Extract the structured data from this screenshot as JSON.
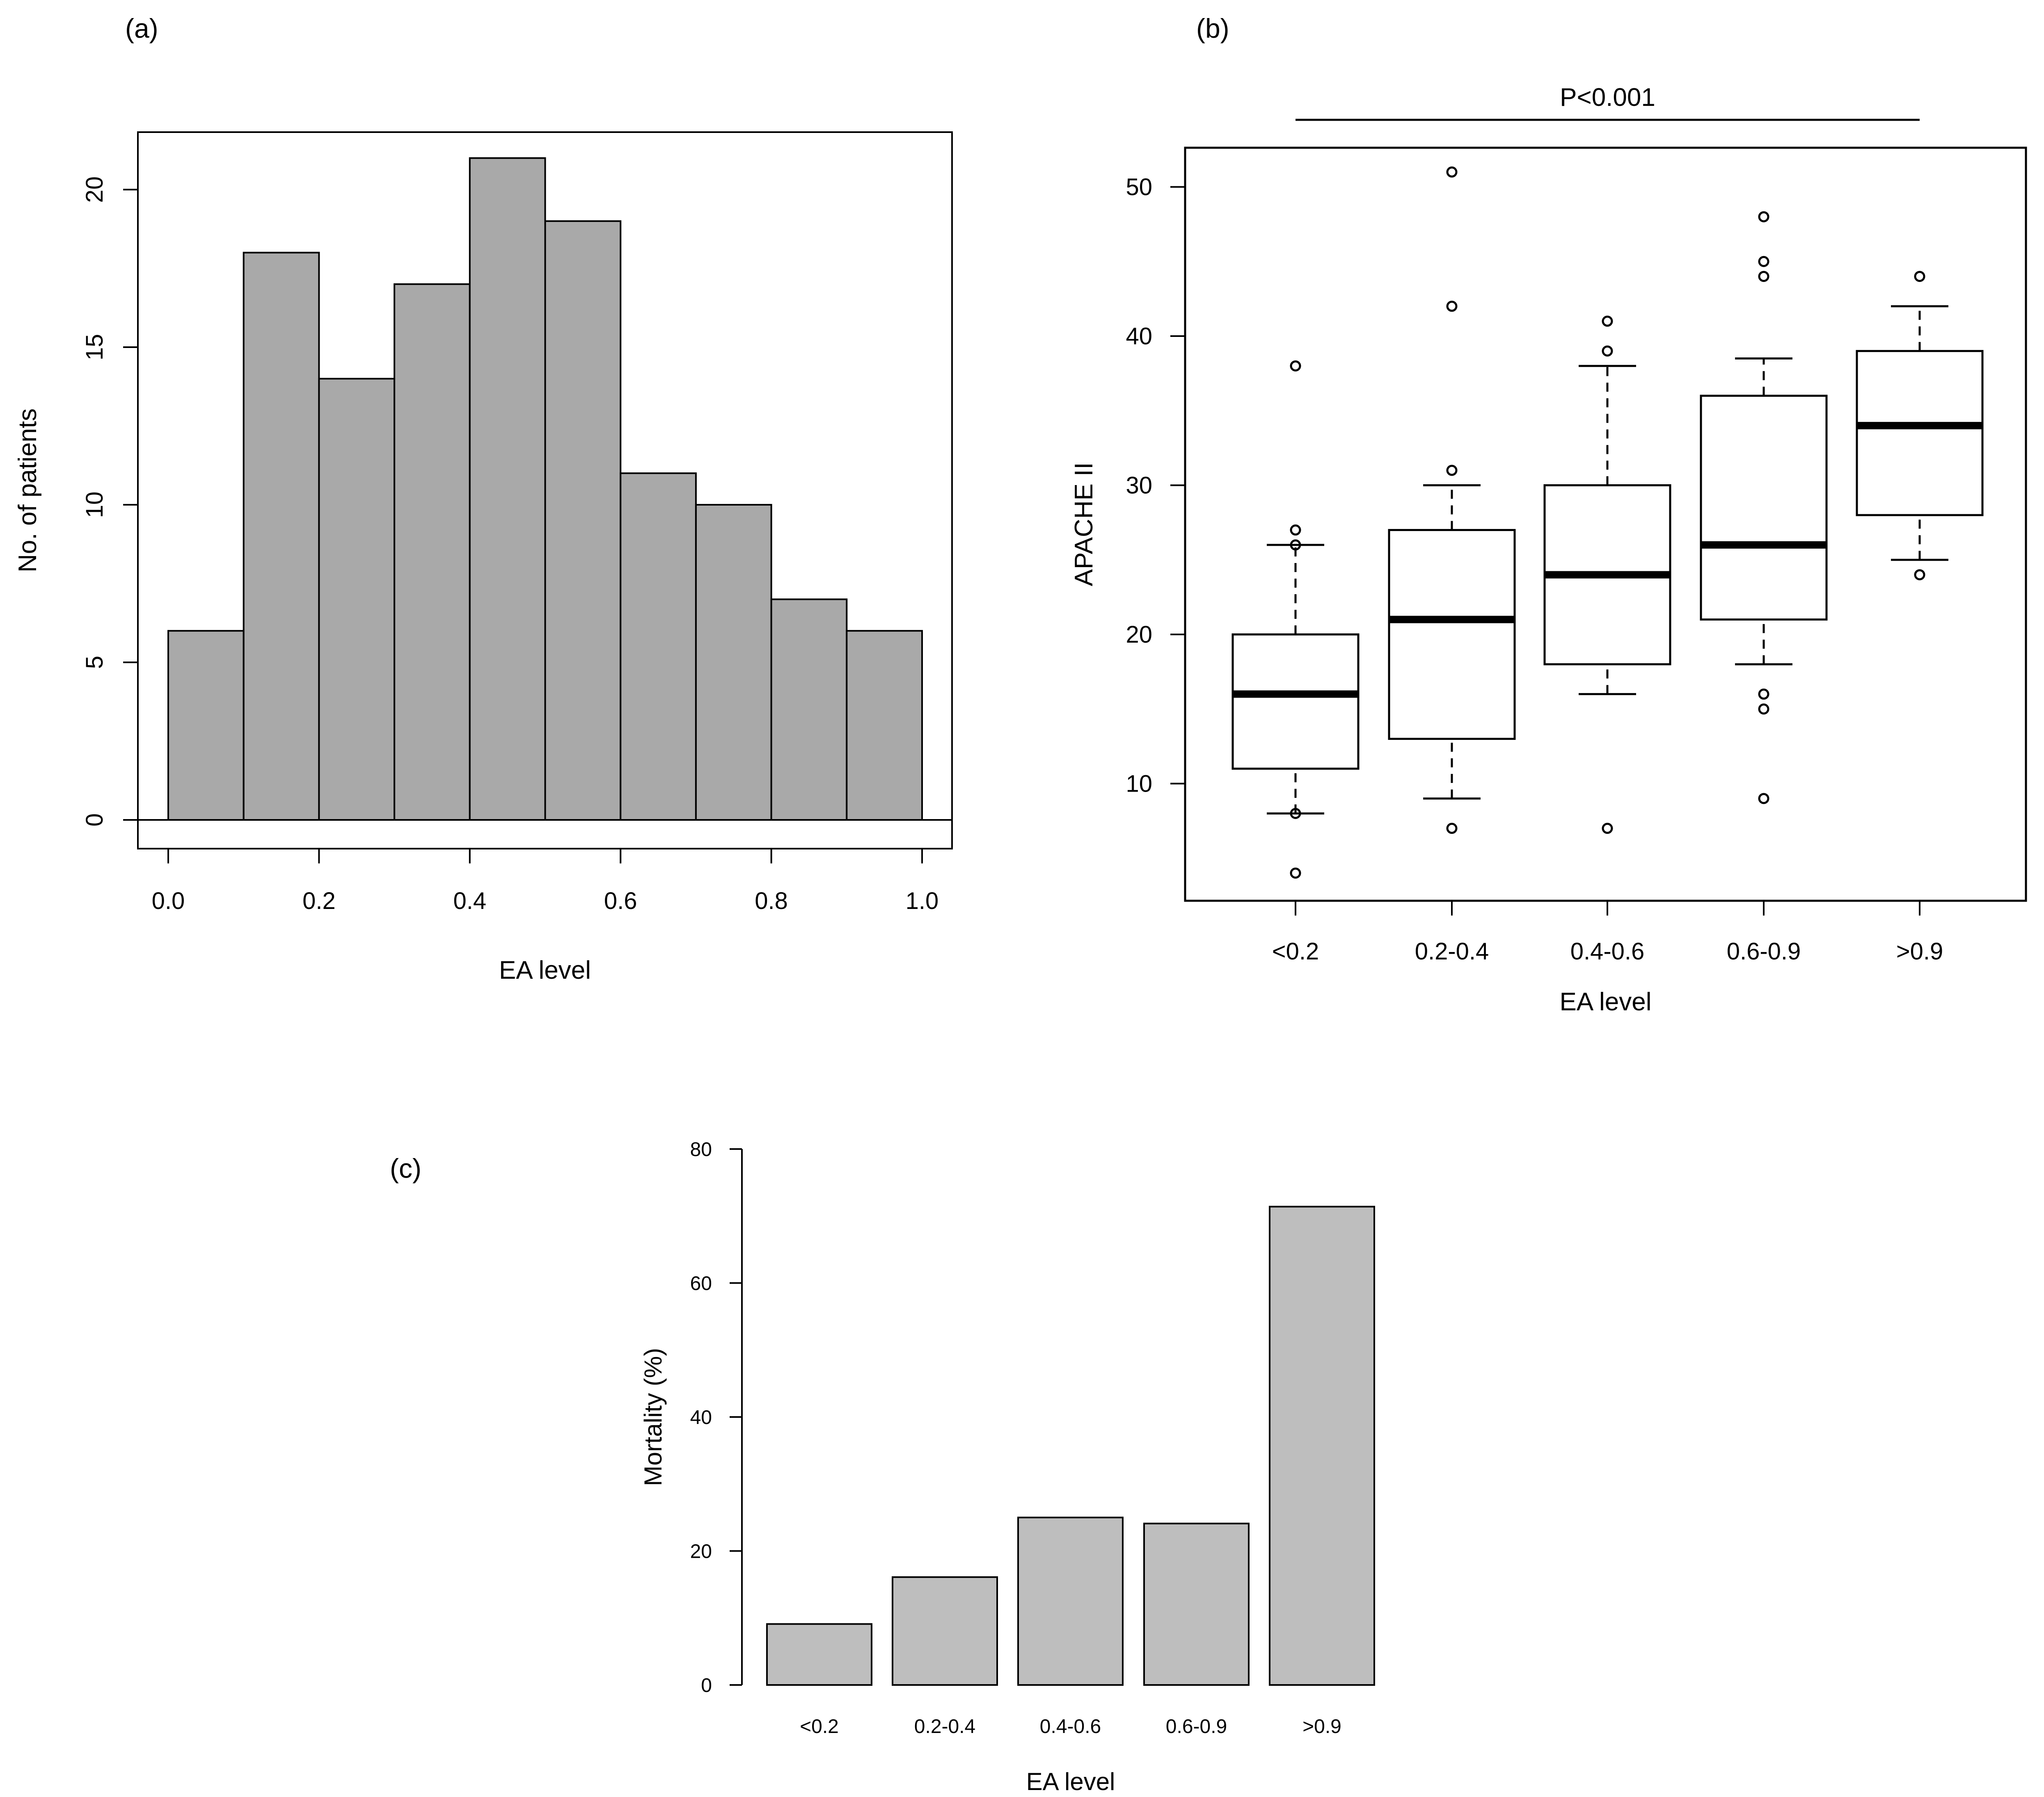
{
  "figure": {
    "label_a": "(a)",
    "label_b": "(b)",
    "label_c": "(c)"
  },
  "chart_data": [
    {
      "panel": "(a)",
      "type": "bar",
      "subtype": "histogram",
      "title": "",
      "xlabel": "EA level",
      "ylabel": "No. of patients",
      "bins": [
        [
          0.0,
          0.1
        ],
        [
          0.1,
          0.2
        ],
        [
          0.2,
          0.3
        ],
        [
          0.3,
          0.4
        ],
        [
          0.4,
          0.5
        ],
        [
          0.5,
          0.6
        ],
        [
          0.6,
          0.7
        ],
        [
          0.7,
          0.8
        ],
        [
          0.8,
          0.9
        ],
        [
          0.9,
          1.0
        ]
      ],
      "values": [
        6,
        18,
        14,
        17,
        21,
        19,
        11,
        10,
        7,
        6
      ],
      "xlim": [
        0,
        1
      ],
      "ylim": [
        0,
        22
      ],
      "xticks": [
        0.0,
        0.2,
        0.4,
        0.6,
        0.8,
        1.0
      ],
      "xtick_labels": [
        "0.0",
        "0.2",
        "0.4",
        "0.6",
        "0.8",
        "1.0"
      ],
      "yticks": [
        0,
        5,
        10,
        15,
        20
      ],
      "ytick_labels": [
        "0",
        "5",
        "10",
        "15",
        "20"
      ],
      "bar_color": "#a9a9a9"
    },
    {
      "panel": "(b)",
      "type": "box",
      "title": "",
      "xlabel": "EA level",
      "ylabel": "APACHE II",
      "significance": "P<0.001",
      "categories": [
        "<0.2",
        "0.2-0.4",
        "0.4-0.6",
        "0.6-0.9",
        ">0.9"
      ],
      "boxes": [
        {
          "whisker_low": 8,
          "q1": 11,
          "median": 16,
          "q3": 20,
          "whisker_high": 26,
          "outliers": [
            4,
            8,
            27,
            26,
            38
          ]
        },
        {
          "whisker_low": 9,
          "q1": 13,
          "median": 21,
          "q3": 27,
          "whisker_high": 30,
          "outliers": [
            7,
            31,
            42,
            51
          ]
        },
        {
          "whisker_low": 16,
          "q1": 18,
          "median": 24,
          "q3": 30,
          "whisker_high": 38,
          "outliers": [
            7,
            39,
            41
          ]
        },
        {
          "whisker_low": 18,
          "q1": 21,
          "median": 26,
          "q3": 36,
          "whisker_high": 38.5,
          "outliers": [
            9,
            15,
            16,
            44,
            45,
            48
          ]
        },
        {
          "whisker_low": 25,
          "q1": 28,
          "median": 34,
          "q3": 39,
          "whisker_high": 42,
          "outliers": [
            24,
            44
          ]
        }
      ],
      "ylim": [
        3,
        53
      ],
      "yticks": [
        10,
        20,
        30,
        40,
        50
      ],
      "ytick_labels": [
        "10",
        "20",
        "30",
        "40",
        "50"
      ]
    },
    {
      "panel": "(c)",
      "type": "bar",
      "title": "",
      "xlabel": "EA level",
      "ylabel": "Mortality (%)",
      "categories": [
        "<0.2",
        "0.2-0.4",
        "0.4-0.6",
        "0.6-0.9",
        ">0.9"
      ],
      "values": [
        9.1,
        16.1,
        25.0,
        24.1,
        71.4
      ],
      "ylim": [
        0,
        80
      ],
      "yticks": [
        0,
        20,
        40,
        60,
        80
      ],
      "ytick_labels": [
        "0",
        "20",
        "40",
        "60",
        "80"
      ],
      "bar_color": "#bebebe"
    }
  ]
}
